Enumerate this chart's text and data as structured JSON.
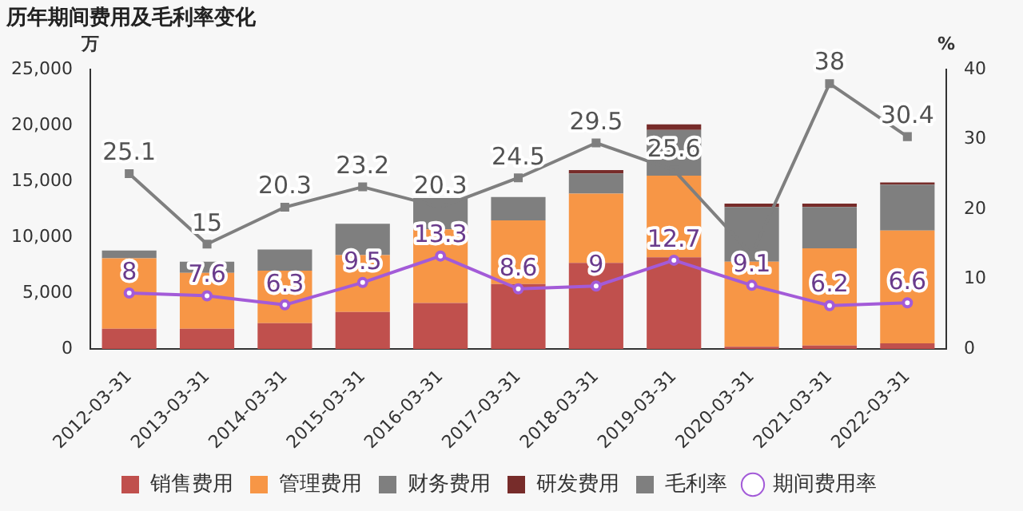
{
  "chart_data": {
    "type": "bar",
    "title": "历年期间费用及毛利率变化",
    "ylabel": "万",
    "y2label": "%",
    "categories": [
      "2012-03-31",
      "2013-03-31",
      "2014-03-31",
      "2015-03-31",
      "2016-03-31",
      "2017-03-31",
      "2018-03-31",
      "2019-03-31",
      "2020-03-31",
      "2021-03-31",
      "2022-03-31"
    ],
    "stacked": true,
    "series": [
      {
        "name": "销售费用",
        "color": "#c0504d",
        "values": [
          1800,
          1800,
          2300,
          3300,
          4100,
          5800,
          7700,
          8200,
          200,
          300,
          500
        ]
      },
      {
        "name": "管理费用",
        "color": "#f79646",
        "values": [
          6300,
          5000,
          4700,
          5100,
          6600,
          5700,
          6200,
          7300,
          7600,
          8700,
          10100
        ]
      },
      {
        "name": "财务费用",
        "color": "#7f7f7f",
        "values": [
          700,
          1000,
          1900,
          2800,
          2800,
          2100,
          1800,
          4100,
          4900,
          3700,
          4100
        ]
      },
      {
        "name": "研发费用",
        "color": "#772c2a",
        "values": [
          0,
          0,
          0,
          0,
          0,
          0,
          300,
          500,
          300,
          300,
          200
        ]
      },
      {
        "name": "毛利率",
        "type": "line",
        "axis": "y2",
        "color": "#7f7f7f",
        "marker": "square",
        "values": [
          25.1,
          15,
          20.3,
          23.2,
          20.3,
          24.5,
          29.5,
          25.6,
          13.5,
          38,
          30.4
        ],
        "value_labels": [
          "25.1",
          "15",
          "20.3",
          "23.2",
          "20.3",
          "24.5",
          "29.5",
          "25.6",
          null,
          "38",
          "30.4"
        ]
      },
      {
        "name": "期间费用率",
        "type": "line",
        "axis": "y2",
        "color": "#a35bd8",
        "marker": "circle",
        "values": [
          8,
          7.6,
          6.3,
          9.5,
          13.3,
          8.6,
          9,
          12.7,
          9.1,
          6.2,
          6.6
        ],
        "value_labels": [
          "8",
          "7.6",
          "6.3",
          "9.5",
          "13.3",
          "8.6",
          "9",
          "12.7",
          "9.1",
          "6.2",
          "6.6"
        ]
      }
    ],
    "ylim": [
      0,
      25000
    ],
    "yticks": [
      0,
      {
        "value": 5000,
        "label": "5,000"
      },
      {
        "value": 10000,
        "label": "10,000"
      },
      {
        "value": 15000,
        "label": "15,000"
      },
      {
        "value": 20000,
        "label": "20,000"
      },
      {
        "value": 25000,
        "label": "25,000"
      }
    ],
    "y2lim": [
      0,
      40
    ],
    "y2ticks": [
      0,
      10,
      20,
      30,
      40
    ],
    "grid": false,
    "legend": "bottom"
  }
}
